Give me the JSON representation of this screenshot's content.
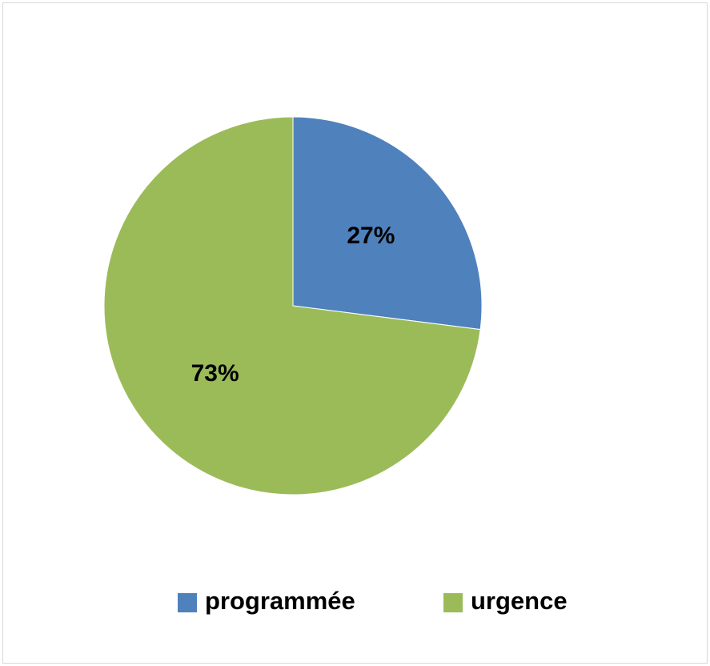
{
  "chart_data": {
    "type": "pie",
    "categories": [
      "programmée",
      "urgence"
    ],
    "values": [
      27,
      73
    ],
    "value_labels": [
      "27%",
      "73%"
    ],
    "colors": [
      "#4f81bd",
      "#9bbb59"
    ],
    "legend": "bottom"
  }
}
